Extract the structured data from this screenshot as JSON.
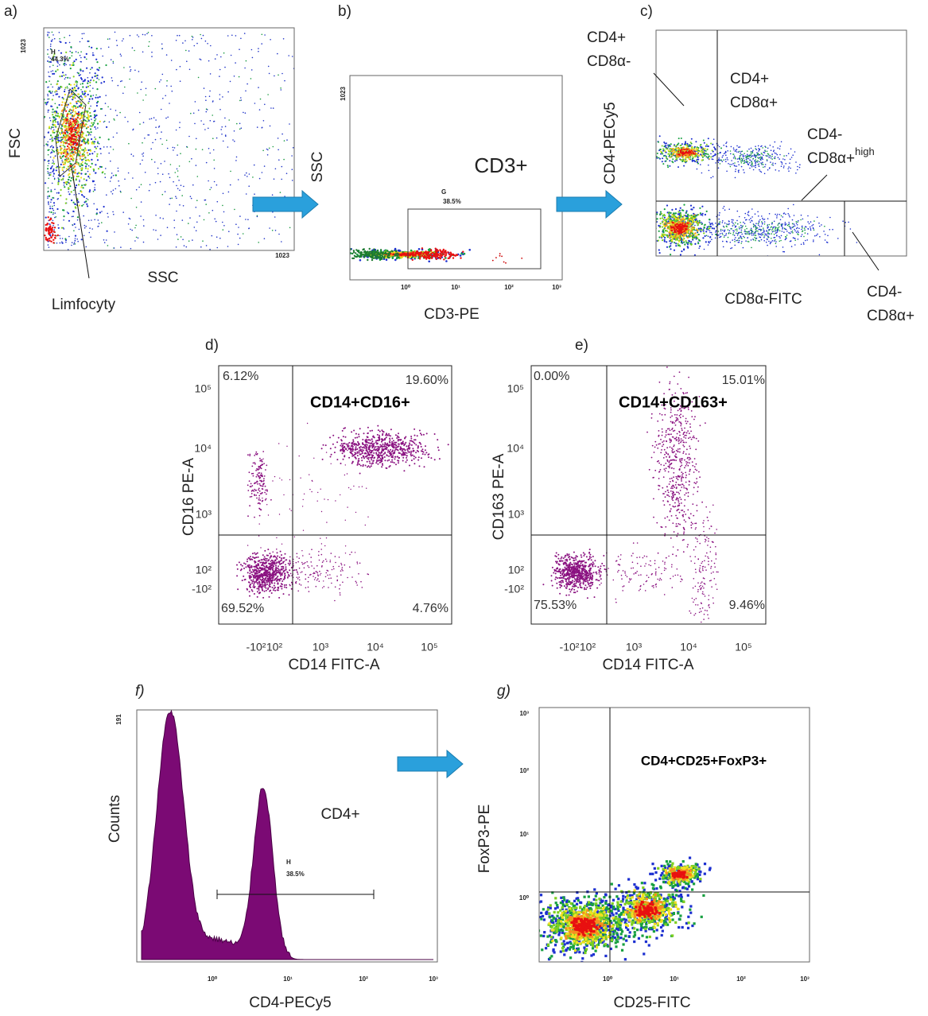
{
  "panels": [
    {
      "letter": "a)",
      "y_label": "FSC",
      "x_label": "SSC",
      "gate": "H",
      "gate_pct": "44.3%",
      "y_max": "1023",
      "x_max": "1023",
      "annotation": "Limfocyty"
    },
    {
      "letter": "b)",
      "y_label": "SSC",
      "x_label": "CD3-PE",
      "population": "CD3+",
      "gate": "G",
      "gate_pct": "38.5%",
      "y_max": "1023",
      "x_ticks": [
        "10⁰",
        "10¹",
        "10²",
        "10³"
      ]
    },
    {
      "letter": "c)",
      "y_label": "CD4-PECy5",
      "x_label": "CD8α-FITC",
      "quadrants": [
        [
          "CD4+",
          "CD8α-"
        ],
        [
          "CD4+",
          "CD8α+"
        ],
        [
          "CD4-",
          "CD8α+",
          "high"
        ],
        [
          "CD4-",
          "CD8α+"
        ]
      ]
    },
    {
      "letter": "d)",
      "y_label": "CD16 PE-A",
      "x_label": "CD14 FITC-A",
      "population": "CD14+CD16+",
      "quadrant_pcts": [
        "6.12%",
        "19.60%",
        "69.52%",
        "4.76%"
      ],
      "y_ticks": [
        "10⁵",
        "10⁴",
        "10³",
        "10²",
        "-10²"
      ],
      "x_ticks": [
        "-10²",
        "10²",
        "10³",
        "10⁴",
        "10⁵"
      ]
    },
    {
      "letter": "e)",
      "y_label": "CD163 PE-A",
      "x_label": "CD14 FITC-A",
      "population": "CD14+CD163+",
      "quadrant_pcts": [
        "0.00%",
        "15.01%",
        "75.53%",
        "9.46%"
      ],
      "y_ticks": [
        "10⁵",
        "10⁴",
        "10³",
        "10²",
        "-10²"
      ],
      "x_ticks": [
        "-10²",
        "10²",
        "10³",
        "10⁴",
        "10⁵"
      ]
    },
    {
      "letter": "f)",
      "y_label": "Counts",
      "x_label": "CD4-PECy5",
      "population": "CD4+",
      "gate": "H",
      "gate_pct": "38.5%",
      "y_max": "191",
      "x_ticks": [
        "10⁰",
        "10¹",
        "10²",
        "10³"
      ]
    },
    {
      "letter": "g)",
      "y_label": "FoxP3-PE",
      "x_label": "CD25-FITC",
      "population": "CD4+CD25+FoxP3+",
      "y_ticks": [
        "10³",
        "10²",
        "10¹",
        "10⁰"
      ],
      "x_ticks": [
        "10⁰",
        "10¹",
        "10²",
        "10³"
      ]
    }
  ]
}
